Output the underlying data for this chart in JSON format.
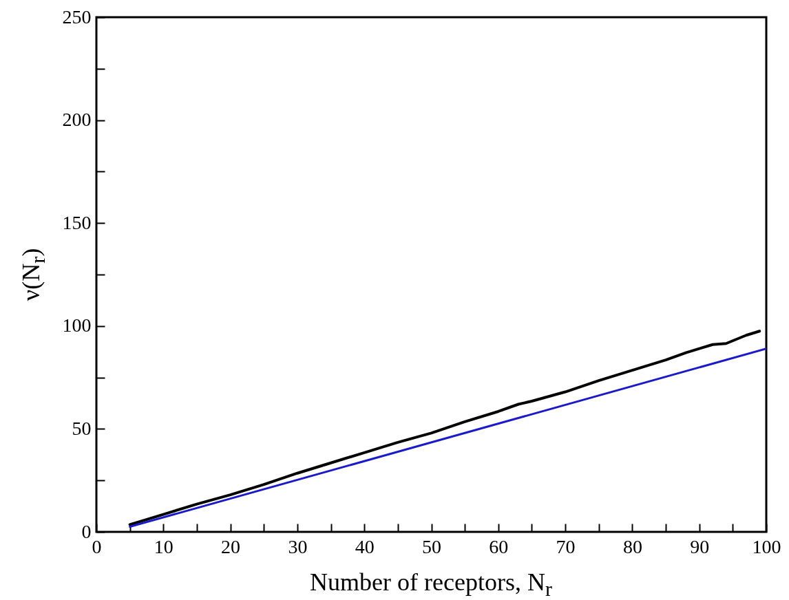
{
  "chart_data": {
    "type": "line",
    "xlabel": "Number of receptors, N$_{r}$",
    "ylabel": "ν(N$_{r}$)",
    "xlim": [
      0,
      100
    ],
    "ylim": [
      0,
      250
    ],
    "xticks": [
      0,
      {
        "value": 5,
        "label": null
      },
      10,
      {
        "value": 15,
        "label": null
      },
      20,
      {
        "value": 25,
        "label": null
      },
      30,
      {
        "value": 35,
        "label": null
      },
      40,
      {
        "value": 45,
        "label": null
      },
      50,
      {
        "value": 55,
        "label": null
      },
      60,
      {
        "value": 65,
        "label": null
      },
      70,
      {
        "value": 75,
        "label": null
      },
      80,
      {
        "value": 85,
        "label": null
      },
      90,
      {
        "value": 95,
        "label": null
      },
      100
    ],
    "yticks": [
      0,
      {
        "value": 25,
        "label": null
      },
      50,
      {
        "value": 75,
        "label": null
      },
      100,
      {
        "value": 125,
        "label": null
      },
      150,
      {
        "value": 175,
        "label": null
      },
      200,
      {
        "value": 225,
        "label": null
      },
      250
    ],
    "grid": false,
    "marker": "none",
    "line_style": "solid",
    "series": [
      {
        "color": "#000000",
        "x": [
          5,
          10,
          15,
          20,
          25,
          30,
          35,
          40,
          45,
          50,
          55,
          60,
          63,
          65,
          70,
          75,
          80,
          85,
          88,
          90,
          92,
          94,
          97,
          99
        ],
        "values": [
          3.5,
          8.5,
          13.5,
          18,
          23,
          28.5,
          33.5,
          38.5,
          43.5,
          48,
          53.5,
          58.5,
          62,
          63.5,
          68,
          73.5,
          78.5,
          83.5,
          87,
          89,
          91,
          91.5,
          95.5,
          97.5
        ]
      },
      {
        "color": "#1a1acc",
        "x": [
          5,
          100
        ],
        "values": [
          2.5,
          89
        ]
      }
    ]
  }
}
